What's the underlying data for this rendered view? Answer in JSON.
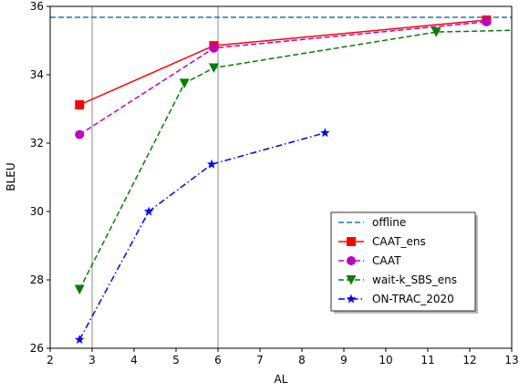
{
  "chart_data": {
    "type": "line",
    "xlabel": "AL",
    "ylabel": "BLEU",
    "xlim": [
      2,
      13
    ],
    "ylim": [
      26,
      36
    ],
    "xticks": [
      2,
      3,
      4,
      5,
      6,
      7,
      8,
      9,
      10,
      11,
      12,
      13
    ],
    "yticks": [
      26,
      28,
      30,
      32,
      34,
      36
    ],
    "vlines": [
      3,
      6
    ],
    "grid": false,
    "legend_position": "lower-right",
    "series": [
      {
        "name": "offline",
        "kind": "hline",
        "y": 35.68,
        "color": "#1f77b4",
        "linestyle": "dashed",
        "marker": "none"
      },
      {
        "name": "CAAT_ens",
        "color": "#ff0000",
        "linestyle": "solid",
        "marker": "square",
        "x": [
          2.7,
          5.9,
          12.4
        ],
        "y": [
          33.12,
          34.85,
          35.6
        ]
      },
      {
        "name": "CAAT",
        "color": "#bf00bf",
        "linestyle": "dashed",
        "marker": "circle",
        "x": [
          2.7,
          5.9,
          12.4
        ],
        "y": [
          32.25,
          34.78,
          35.55
        ]
      },
      {
        "name": "wait-k_SBS_ens",
        "color": "#008000",
        "linestyle": "dashed",
        "marker": "triangle-down",
        "x": [
          2.7,
          5.2,
          5.9,
          11.2,
          13.0
        ],
        "y": [
          27.72,
          33.75,
          34.2,
          35.25,
          35.3
        ],
        "marker_mask": [
          true,
          true,
          true,
          true,
          false
        ]
      },
      {
        "name": "ON-TRAC_2020",
        "color": "#0000ff",
        "linestyle": "dashdot",
        "marker": "star",
        "x": [
          2.7,
          4.35,
          5.85,
          8.55
        ],
        "y": [
          26.25,
          30.0,
          31.38,
          32.3
        ]
      }
    ]
  }
}
